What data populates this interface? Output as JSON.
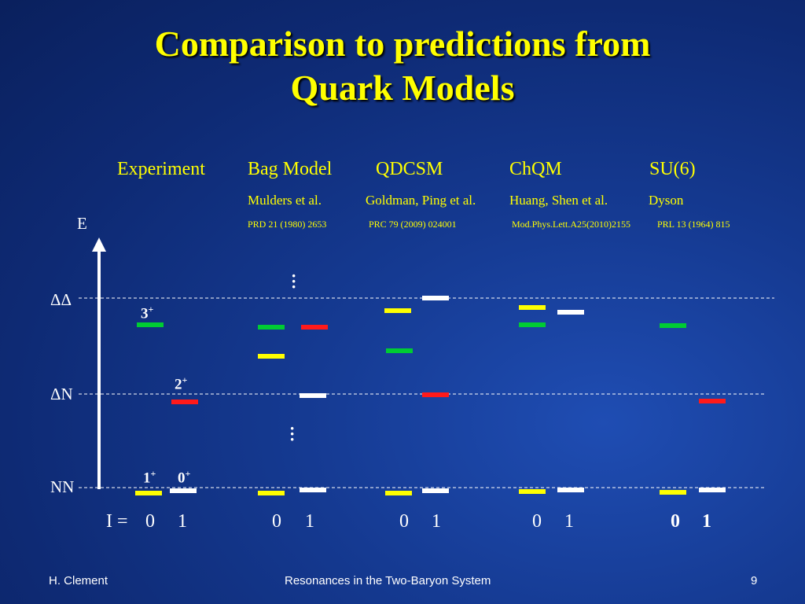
{
  "title": {
    "line1": "Comparison to predictions from",
    "line2": "Quark Models"
  },
  "columns": {
    "headers": [
      "Experiment",
      "Bag Model",
      "QDCSM",
      "ChQM",
      "SU(6)"
    ],
    "authors": [
      "Mulders et al.",
      "Goldman, Ping et al.",
      "Huang, Shen et al.",
      "Dyson"
    ],
    "refs": [
      "PRD 21 (1980) 2653",
      "PRC 79 (2009) 024001",
      "Mod.Phys.Lett.A25(2010)2155",
      "PRL 13 (1964) 815"
    ]
  },
  "axis": {
    "e_label": "E",
    "levels": [
      "ΔΔ",
      "ΔN",
      "NN"
    ]
  },
  "spin_labels": {
    "s3": "3",
    "s3_sup": "+",
    "s2": "2",
    "s2_sup": "+",
    "s1": "1",
    "s1_sup": "+",
    "s0": "0",
    "s0_sup": "+"
  },
  "isospin": {
    "label": "I =",
    "values": [
      "0",
      "1"
    ]
  },
  "colors": {
    "yellow": "#ffff00",
    "green": "#00cc33",
    "red": "#ff1a1a",
    "white": "#ffffff"
  },
  "footer": {
    "author": "H. Clement",
    "center": "Resonances in the Two-Baryon System",
    "page": "9"
  }
}
